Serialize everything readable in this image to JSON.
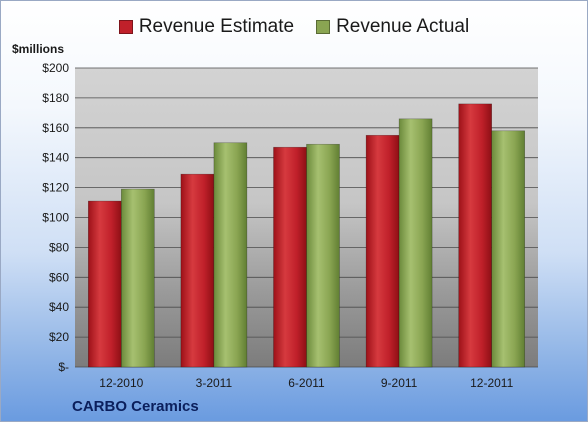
{
  "chart_data": {
    "type": "bar",
    "categories": [
      "12-2010",
      "3-2011",
      "6-2011",
      "9-2011",
      "12-2011"
    ],
    "series": [
      {
        "name": "Revenue Estimate",
        "values": [
          111,
          129,
          147,
          155,
          176
        ],
        "color": "#c0202a"
      },
      {
        "name": "Revenue Actual",
        "values": [
          119,
          150,
          149,
          166,
          158
        ],
        "color": "#8aa552"
      }
    ],
    "ylabel": "$millions",
    "ylim": [
      0,
      200
    ],
    "yticks": [
      0,
      20,
      40,
      60,
      80,
      100,
      120,
      140,
      160,
      180,
      200
    ],
    "ytick_labels": [
      "$-",
      "$20",
      "$40",
      "$60",
      "$80",
      "$100",
      "$120",
      "$140",
      "$160",
      "$180",
      "$200"
    ],
    "legend_position": "top",
    "grid": true,
    "footer": "CARBO Ceramics"
  }
}
